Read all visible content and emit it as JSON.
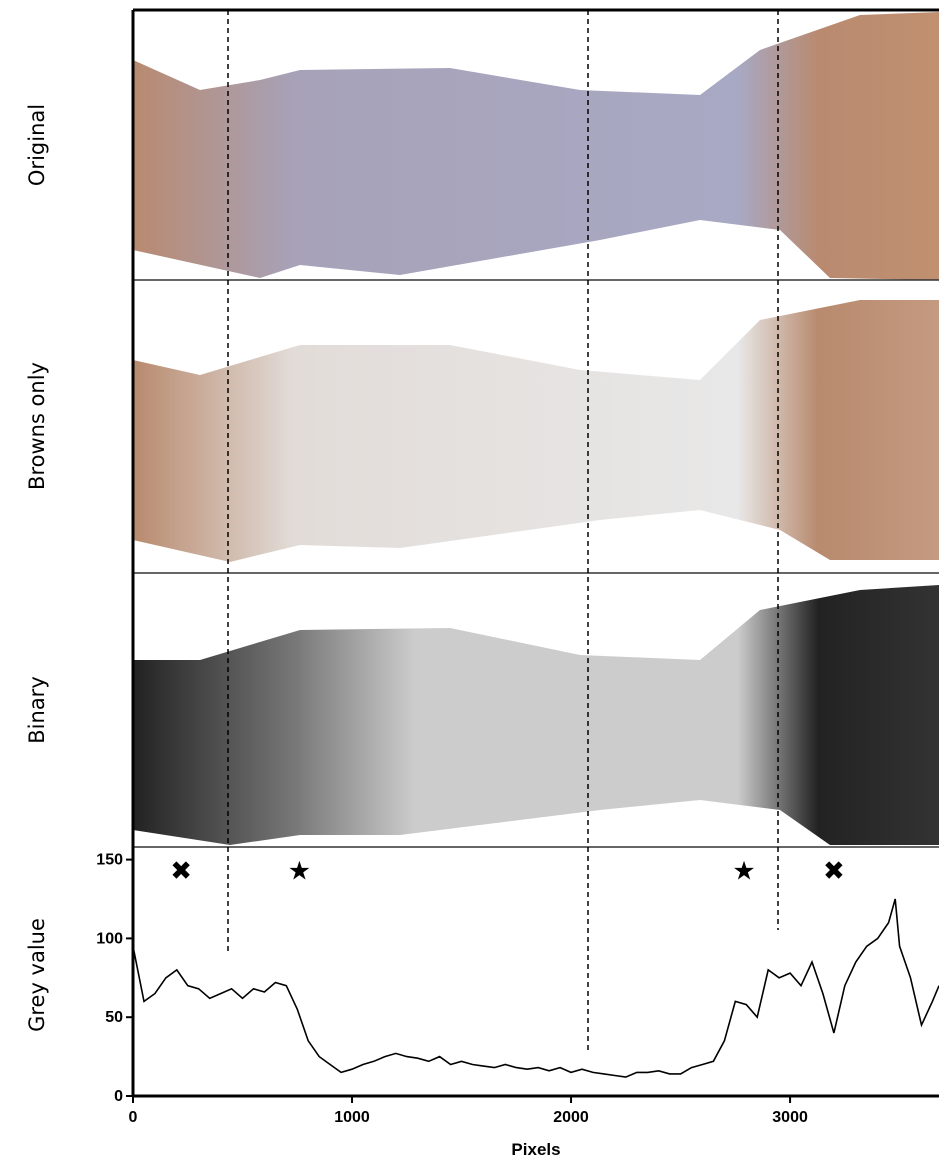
{
  "chart_data": {
    "type": "line",
    "panel_labels": [
      "Original",
      "Browns only",
      "Binary"
    ],
    "xlabel": "Pixels",
    "ylabel": "Grey value",
    "xlim": [
      0,
      3680
    ],
    "ylim": [
      0,
      158
    ],
    "xticks": [
      0,
      1000,
      2000,
      3000
    ],
    "yticks": [
      0,
      50,
      100,
      150
    ],
    "markers": [
      {
        "symbol": "✖",
        "x": 220,
        "y": 143
      },
      {
        "symbol": "★",
        "x": 760,
        "y": 143
      },
      {
        "symbol": "★",
        "x": 2790,
        "y": 143
      },
      {
        "symbol": "✖",
        "x": 3200,
        "y": 143
      }
    ],
    "series": [
      {
        "name": "Grey value",
        "color": "#000000",
        "x": [
          0,
          50,
          100,
          150,
          200,
          250,
          300,
          350,
          400,
          450,
          500,
          550,
          600,
          650,
          700,
          750,
          800,
          850,
          900,
          950,
          1000,
          1050,
          1100,
          1150,
          1200,
          1250,
          1300,
          1350,
          1400,
          1450,
          1500,
          1550,
          1600,
          1650,
          1700,
          1750,
          1800,
          1850,
          1900,
          1950,
          2000,
          2050,
          2100,
          2150,
          2200,
          2250,
          2300,
          2350,
          2400,
          2450,
          2500,
          2550,
          2600,
          2650,
          2700,
          2750,
          2800,
          2850,
          2900,
          2950,
          3000,
          3050,
          3100,
          3150,
          3200,
          3250,
          3300,
          3350,
          3400,
          3450,
          3480,
          3500,
          3550,
          3600,
          3650,
          3680
        ],
        "values": [
          95,
          60,
          65,
          75,
          80,
          70,
          68,
          62,
          65,
          68,
          62,
          68,
          66,
          72,
          70,
          55,
          35,
          25,
          20,
          15,
          17,
          20,
          22,
          25,
          27,
          25,
          24,
          22,
          25,
          20,
          22,
          20,
          19,
          18,
          20,
          18,
          17,
          18,
          16,
          18,
          15,
          17,
          15,
          14,
          13,
          12,
          15,
          15,
          16,
          14,
          14,
          18,
          20,
          22,
          35,
          60,
          58,
          50,
          80,
          75,
          78,
          70,
          85,
          65,
          40,
          70,
          85,
          95,
          100,
          110,
          125,
          95,
          75,
          45,
          60,
          70
        ]
      }
    ]
  }
}
